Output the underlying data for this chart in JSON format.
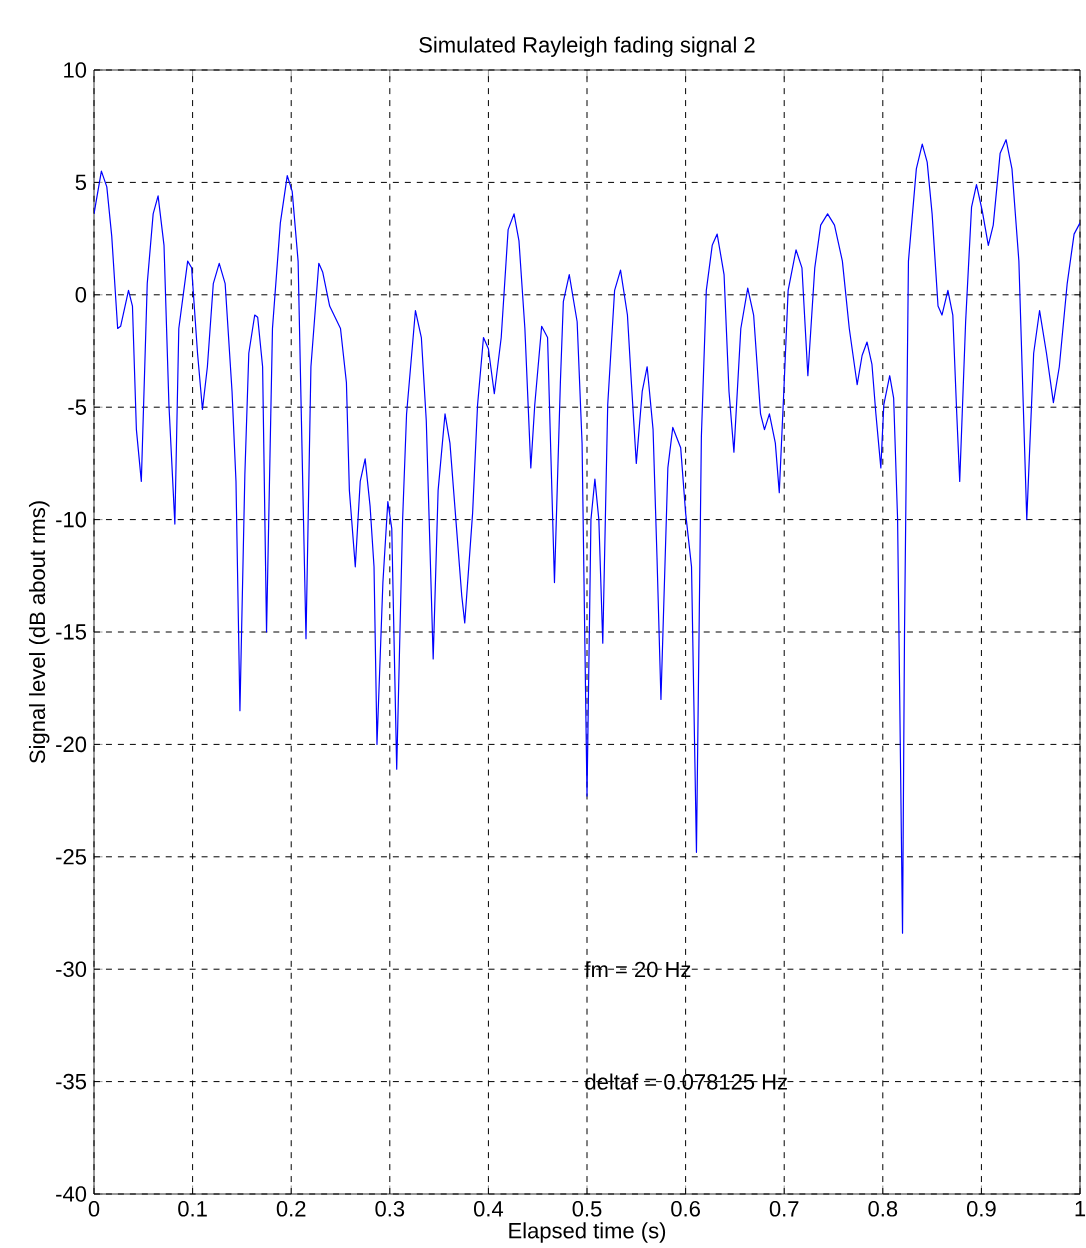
{
  "chart_data": {
    "type": "line",
    "title": "Simulated Rayleigh fading signal 2",
    "xlabel": "Elapsed time (s)",
    "ylabel": "Signal level (dB about rms)",
    "annotations": [
      "fm = 20 Hz",
      "deltaf = 0.078125 Hz"
    ],
    "xlim": [
      0,
      1
    ],
    "ylim": [
      -40,
      10
    ],
    "xticks": [
      0,
      0.1,
      0.2,
      0.3,
      0.4,
      0.5,
      0.6,
      0.7,
      0.8,
      0.9,
      1
    ],
    "yticks": [
      -40,
      -35,
      -30,
      -25,
      -20,
      -15,
      -10,
      -5,
      0,
      5,
      10
    ],
    "grid": true,
    "marker": "none",
    "line_style": "dashed",
    "series": [
      {
        "color": "#0000ff",
        "line_style": "solid",
        "x": [
          0,
          0.0075,
          0.013,
          0.018,
          0.024,
          0.027,
          0.035,
          0.039,
          0.043,
          0.048,
          0.054,
          0.06,
          0.065,
          0.071,
          0.076,
          0.082,
          0.086,
          0.095,
          0.099,
          0.105,
          0.11,
          0.115,
          0.121,
          0.127,
          0.133,
          0.14,
          0.144,
          0.148,
          0.153,
          0.157,
          0.163,
          0.166,
          0.171,
          0.175,
          0.181,
          0.189,
          0.196,
          0.201,
          0.207,
          0.215,
          0.22,
          0.228,
          0.232,
          0.239,
          0.25,
          0.256,
          0.259,
          0.265,
          0.27,
          0.275,
          0.28,
          0.284,
          0.287,
          0.293,
          0.298,
          0.302,
          0.307,
          0.313,
          0.317,
          0.326,
          0.332,
          0.337,
          0.344,
          0.349,
          0.356,
          0.361,
          0.367,
          0.373,
          0.376,
          0.384,
          0.389,
          0.395,
          0.4,
          0.406,
          0.413,
          0.42,
          0.426,
          0.431,
          0.437,
          0.443,
          0.447,
          0.454,
          0.46,
          0.467,
          0.473,
          0.476,
          0.482,
          0.49,
          0.495,
          0.5,
          0.504,
          0.508,
          0.512,
          0.516,
          0.521,
          0.528,
          0.534,
          0.541,
          0.545,
          0.55,
          0.556,
          0.561,
          0.567,
          0.571,
          0.575,
          0.582,
          0.587,
          0.595,
          0.6,
          0.606,
          0.611,
          0.616,
          0.621,
          0.627,
          0.632,
          0.639,
          0.644,
          0.649,
          0.656,
          0.663,
          0.669,
          0.676,
          0.68,
          0.685,
          0.691,
          0.695,
          0.7,
          0.704,
          0.712,
          0.718,
          0.724,
          0.731,
          0.737,
          0.744,
          0.751,
          0.759,
          0.766,
          0.774,
          0.779,
          0.784,
          0.789,
          0.793,
          0.798,
          0.801,
          0.807,
          0.811,
          0.815,
          0.82,
          0.822,
          0.826,
          0.834,
          0.84,
          0.845,
          0.85,
          0.856,
          0.86,
          0.866,
          0.871,
          0.875,
          0.878,
          0.884,
          0.89,
          0.895,
          0.901,
          0.907,
          0.912,
          0.919,
          0.925,
          0.931,
          0.938,
          0.946,
          0.953,
          0.959,
          0.966,
          0.973,
          0.979,
          0.987,
          0.994,
          1.0
        ],
        "values": [
          3.6,
          5.5,
          4.8,
          2.6,
          -1.5,
          -1.4,
          0.2,
          -0.5,
          -6,
          -8.3,
          0.5,
          3.6,
          4.4,
          2.2,
          -4.9,
          -10.2,
          -1.5,
          1.5,
          1.2,
          -2.6,
          -5.1,
          -3.2,
          0.5,
          1.4,
          0.5,
          -4.3,
          -8.3,
          -18.5,
          -8,
          -2.6,
          -0.9,
          -1,
          -3.2,
          -15,
          -1.5,
          3.2,
          5.3,
          4.6,
          1.5,
          -15.3,
          -3.2,
          1.4,
          1.0,
          -0.5,
          -1.5,
          -3.9,
          -8.7,
          -12.1,
          -8.3,
          -7.3,
          -9.4,
          -12.1,
          -20,
          -12.8,
          -9.2,
          -10.4,
          -21.1,
          -10,
          -5.3,
          -0.7,
          -1.9,
          -5.6,
          -16.2,
          -8.7,
          -5.3,
          -6.6,
          -10,
          -13.4,
          -14.6,
          -9.7,
          -4.9,
          -1.9,
          -2.4,
          -4.4,
          -1.9,
          2.9,
          3.6,
          2.4,
          -1.5,
          -7.7,
          -4.9,
          -1.4,
          -1.9,
          -12.8,
          -3.9,
          -0.3,
          0.9,
          -1.2,
          -6.6,
          -22.3,
          -10,
          -8.2,
          -10,
          -15.5,
          -4.9,
          0.2,
          1.1,
          -0.9,
          -3.9,
          -7.5,
          -4.3,
          -3.2,
          -6,
          -11.7,
          -18,
          -7.7,
          -5.9,
          -6.8,
          -9.7,
          -12.1,
          -24.8,
          -6.3,
          0.2,
          2.2,
          2.7,
          0.9,
          -4.3,
          -7,
          -1.5,
          0.3,
          -0.9,
          -5.3,
          -6,
          -5.3,
          -6.6,
          -8.8,
          -3.9,
          0.2,
          2,
          1.2,
          -3.6,
          1.2,
          3.1,
          3.6,
          3.1,
          1.5,
          -1.5,
          -4,
          -2.7,
          -2.1,
          -3.1,
          -5.3,
          -7.7,
          -4.9,
          -3.6,
          -4.6,
          -10,
          -28.4,
          -15.1,
          1.5,
          5.6,
          6.7,
          5.9,
          3.6,
          -0.5,
          -0.9,
          0.2,
          -0.9,
          -5.3,
          -8.3,
          -1.2,
          3.9,
          4.9,
          3.7,
          2.2,
          3.1,
          6.3,
          6.9,
          5.6,
          1.5,
          -10,
          -2.6,
          -0.7,
          -2.6,
          -4.8,
          -3.2,
          0.5,
          2.7,
          3.2
        ]
      }
    ]
  }
}
